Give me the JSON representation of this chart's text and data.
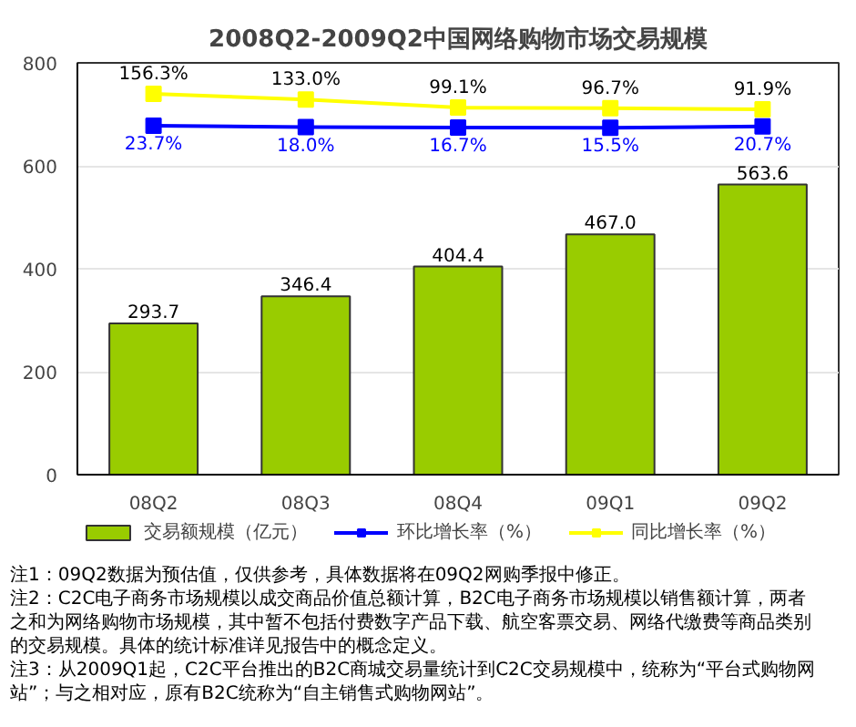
{
  "chart_data": {
    "type": "bar",
    "title": "2008Q2-2009Q2中国网络购物市场交易规模",
    "categories": [
      "08Q2",
      "08Q3",
      "08Q4",
      "09Q1",
      "09Q2"
    ],
    "series": [
      {
        "name": "交易额规模（亿元）",
        "color": "#99cc00",
        "values": [
          293.7,
          346.4,
          404.4,
          467.0,
          563.6
        ],
        "value_labels": [
          "293.7",
          "346.4",
          "404.4",
          "467.0",
          "563.6"
        ]
      },
      {
        "name": "环比增长率（%）",
        "type": "line",
        "axis": "y2",
        "color": "#0000ff",
        "marker": "square",
        "values": [
          23.7,
          18.0,
          16.7,
          15.5,
          20.7
        ],
        "value_labels": [
          "23.7%",
          "18.0%",
          "16.7%",
          "15.5%",
          "20.7%"
        ]
      },
      {
        "name": "同比增长率（%）",
        "type": "line",
        "axis": "y2",
        "color": "#ffff00",
        "marker": "square",
        "values": [
          156.3,
          133.0,
          99.1,
          96.7,
          91.9
        ],
        "value_labels": [
          "156.3%",
          "133.0%",
          "99.1%",
          "96.7%",
          "91.9%"
        ]
      }
    ],
    "ylim": [
      0,
      800
    ],
    "yticks": [
      0,
      200,
      400,
      600,
      800
    ],
    "y2lim": [
      -1426,
      285
    ],
    "tick_labels": "xy",
    "grid": "y",
    "legend": "bottom",
    "annotations": [
      "注1：09Q2数据为预估值，仅供参考，具体数据将在09Q2网购季报中修正。",
      "注2：C2C电子商务市场规模以成交商品价值总额计算，B2C电子商务市场规模以销售额计算，两者之和为网络购物市场规模，其中暂不包括付费数字产品下载、航空客票交易、网络代缴费等商品类别的交易规模。具体的统计标准详见报告中的概念定义。",
      "注3：从2009Q1起，C2C平台推出的B2C商城交易量统计到C2C交易规模中，统称为“平台式购物网站”；与之相对应，原有B2C统称为“自主销售式购物网站”。"
    ]
  }
}
